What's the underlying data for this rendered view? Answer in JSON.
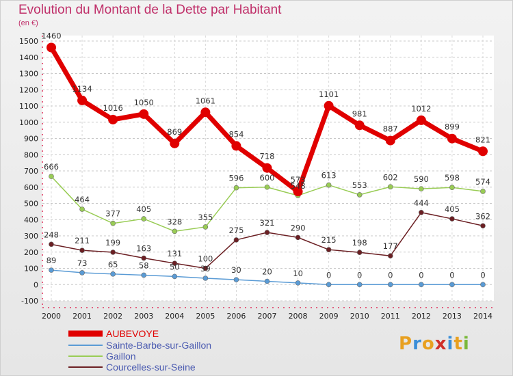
{
  "chart_data": {
    "type": "line",
    "title": "Evolution du Montant de la Dette par Habitant",
    "subtitle": "(en €)",
    "x": [
      2000,
      2001,
      2002,
      2003,
      2004,
      2005,
      2006,
      2007,
      2008,
      2009,
      2010,
      2011,
      2012,
      2013,
      2014
    ],
    "ylim": [
      -100,
      1500
    ],
    "ytick_step": 100,
    "grid": "horizontal dashed",
    "legend_position": "bottom-left",
    "series": [
      {
        "name": "AUBEVOYE",
        "color": "#e00000",
        "values": [
          1460,
          1134,
          1016,
          1050,
          869,
          1061,
          854,
          718,
          573,
          1101,
          981,
          887,
          1012,
          899,
          821
        ]
      },
      {
        "name": "Sainte-Barbe-sur-Gaillon",
        "color": "#5a9bd5",
        "values": [
          89,
          73,
          65,
          58,
          50,
          39,
          30,
          20,
          10,
          0,
          0,
          0,
          0,
          0,
          0
        ]
      },
      {
        "name": "Gaillon",
        "color": "#99cc55",
        "values": [
          666,
          464,
          377,
          405,
          328,
          355,
          596,
          600,
          548,
          613,
          553,
          602,
          590,
          598,
          574
        ]
      },
      {
        "name": "Courcelles-sur-Seine",
        "color": "#6b1f23",
        "values": [
          248,
          211,
          199,
          163,
          131,
          100,
          275,
          321,
          290,
          215,
          198,
          177,
          444,
          405,
          362
        ]
      }
    ]
  },
  "logo": {
    "letters": [
      "P",
      "r",
      "o",
      "x",
      "i",
      "t",
      "i"
    ],
    "colors": [
      "#e8a020",
      "#3a8ed8",
      "#e8a020",
      "#d0302a",
      "#3a8ed8",
      "#e8a020",
      "#7ab83a"
    ]
  }
}
